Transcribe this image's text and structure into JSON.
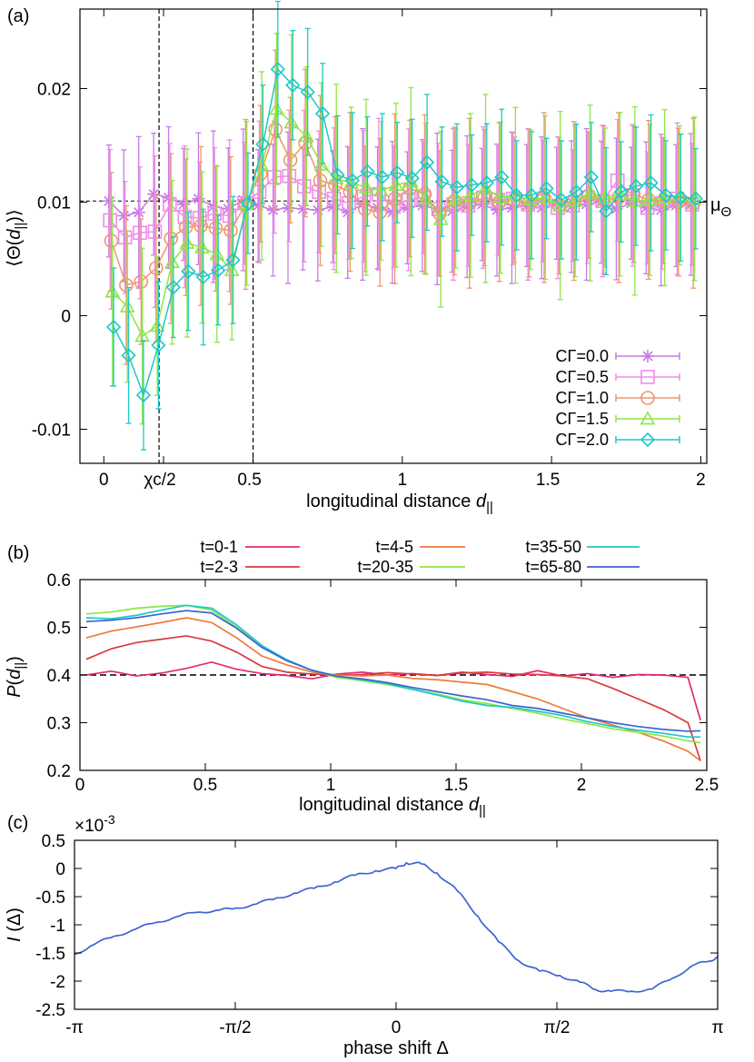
{
  "chart_data": [
    {
      "panel": "(a)",
      "type": "line",
      "xlabel": "longitudinal distance d||",
      "ylabel": "⟨Θ(d||)⟩",
      "xlim": [
        -0.08,
        2.02
      ],
      "ylim": [
        -0.013,
        0.027
      ],
      "xticks": [
        {
          "v": 0,
          "t": "0"
        },
        {
          "v": 0.2,
          "t": "χc/2"
        },
        {
          "v": 0.5,
          "t": "0.5"
        },
        {
          "v": 1,
          "t": "1"
        },
        {
          "v": 1.5,
          "t": "1.5"
        },
        {
          "v": 2,
          "t": "2"
        }
      ],
      "yticks": [
        {
          "v": -0.01,
          "t": "-0.01"
        },
        {
          "v": 0,
          "t": "0"
        },
        {
          "v": 0.01,
          "t": "0.01"
        },
        {
          "v": 0.02,
          "t": "0.02"
        }
      ],
      "vlines": [
        0.185,
        0.5
      ],
      "hline": {
        "value": 0.0101,
        "label": "μΘ"
      },
      "x": [
        0.025,
        0.075,
        0.125,
        0.175,
        0.225,
        0.275,
        0.325,
        0.375,
        0.425,
        0.475,
        0.525,
        0.575,
        0.625,
        0.675,
        0.725,
        0.775,
        0.825,
        0.875,
        0.925,
        0.975,
        1.025,
        1.075,
        1.125,
        1.175,
        1.225,
        1.275,
        1.325,
        1.375,
        1.425,
        1.475,
        1.525,
        1.575,
        1.625,
        1.675,
        1.725,
        1.775,
        1.825,
        1.875,
        1.925,
        1.975
      ],
      "series": [
        {
          "name": "CΓ=0.0",
          "color": "#c77be6",
          "marker": "star",
          "values": [
            0.0101,
            0.0088,
            0.0091,
            0.0107,
            0.0104,
            0.0098,
            0.0103,
            0.0096,
            0.0094,
            0.0102,
            0.0097,
            0.0093,
            0.0095,
            0.0094,
            0.0093,
            0.0096,
            0.0091,
            0.0098,
            0.0095,
            0.0091,
            0.0095,
            0.0097,
            0.0094,
            0.0092,
            0.0096,
            0.0098,
            0.0093,
            0.0095,
            0.0097,
            0.0095,
            0.0099,
            0.0096,
            0.0098,
            0.01,
            0.0094,
            0.0099,
            0.0095,
            0.0093,
            0.0097,
            0.0098
          ],
          "err": 0.0058
        },
        {
          "name": "CΓ=0.5",
          "color": "#f08ce6",
          "marker": "square",
          "values": [
            0.0084,
            0.0069,
            0.0073,
            0.0074,
            0.0098,
            0.0087,
            0.0086,
            0.009,
            0.0088,
            0.0099,
            0.0109,
            0.0122,
            0.0123,
            0.0114,
            0.0109,
            0.0103,
            0.0099,
            0.0105,
            0.0107,
            0.0096,
            0.0102,
            0.0104,
            0.0094,
            0.0098,
            0.0097,
            0.0104,
            0.0102,
            0.0103,
            0.0098,
            0.0101,
            0.0095,
            0.0097,
            0.0104,
            0.0101,
            0.0119,
            0.0106,
            0.0095,
            0.0099,
            0.0103,
            0.0098
          ],
          "err": 0.0058
        },
        {
          "name": "CΓ=1.0",
          "color": "#f0966e",
          "marker": "circle",
          "values": [
            0.0066,
            0.0027,
            0.003,
            0.0042,
            0.0068,
            0.0078,
            0.0079,
            0.0077,
            0.0075,
            0.0098,
            0.0125,
            0.0164,
            0.0137,
            0.0152,
            0.0119,
            0.0115,
            0.0109,
            0.0094,
            0.0091,
            0.0103,
            0.0112,
            0.0107,
            0.009,
            0.0101,
            0.0099,
            0.0104,
            0.01,
            0.0102,
            0.0099,
            0.0104,
            0.0097,
            0.0101,
            0.0106,
            0.0102,
            0.0104,
            0.0107,
            0.0102,
            0.0101,
            0.01,
            0.0099
          ],
          "err": 0.0065
        },
        {
          "name": "CΓ=1.5",
          "color": "#8ee646",
          "marker": "triangle",
          "values": [
            0.0021,
            0.0008,
            -0.0018,
            -0.0009,
            0.0047,
            0.0064,
            0.006,
            0.0054,
            0.004,
            0.0099,
            0.0132,
            0.0182,
            0.017,
            0.0158,
            0.0133,
            0.0121,
            0.0117,
            0.0113,
            0.011,
            0.0115,
            0.0118,
            0.0103,
            0.0085,
            0.0103,
            0.0106,
            0.0112,
            0.0104,
            0.0106,
            0.0102,
            0.0104,
            0.0097,
            0.0101,
            0.0108,
            0.0104,
            0.0107,
            0.0101,
            0.0102,
            0.0104,
            0.0106,
            0.0103
          ],
          "err": 0.0072
        },
        {
          "name": "CΓ=2.0",
          "color": "#1ec8c8",
          "marker": "diamond",
          "values": [
            -0.001,
            -0.0035,
            -0.007,
            -0.0026,
            0.0025,
            0.0039,
            0.0034,
            0.004,
            0.0049,
            0.0099,
            0.0151,
            0.0217,
            0.0203,
            0.0197,
            0.0178,
            0.0124,
            0.0119,
            0.0127,
            0.0122,
            0.0126,
            0.0121,
            0.0135,
            0.0118,
            0.0113,
            0.0115,
            0.0117,
            0.0122,
            0.0106,
            0.0106,
            0.0112,
            0.0102,
            0.0109,
            0.0122,
            0.0092,
            0.0109,
            0.0114,
            0.0117,
            0.0106,
            0.0104,
            0.0103
          ],
          "err": 0.0052
        }
      ]
    },
    {
      "panel": "(b)",
      "type": "line",
      "xlabel": "longitudinal distance d||",
      "ylabel": "P(d||)",
      "xlim": [
        0,
        2.5
      ],
      "ylim": [
        0.2,
        0.6
      ],
      "xticks": [
        {
          "v": 0,
          "t": "0"
        },
        {
          "v": 0.5,
          "t": "0.5"
        },
        {
          "v": 1,
          "t": "1"
        },
        {
          "v": 1.5,
          "t": "1.5"
        },
        {
          "v": 2,
          "t": "2"
        },
        {
          "v": 2.5,
          "t": "2.5"
        }
      ],
      "yticks": [
        {
          "v": 0.2,
          "t": "0.2"
        },
        {
          "v": 0.3,
          "t": "0.3"
        },
        {
          "v": 0.4,
          "t": "0.4"
        },
        {
          "v": 0.5,
          "t": "0.5"
        },
        {
          "v": 0.6,
          "t": "0.6"
        }
      ],
      "hline": {
        "value": 0.4
      },
      "x": [
        0.025,
        0.125,
        0.225,
        0.325,
        0.425,
        0.525,
        0.625,
        0.725,
        0.825,
        0.925,
        1.025,
        1.125,
        1.225,
        1.325,
        1.425,
        1.525,
        1.625,
        1.725,
        1.825,
        1.925,
        2.025,
        2.125,
        2.225,
        2.325,
        2.425,
        2.475
      ],
      "series": [
        {
          "name": "t=0-1",
          "color": "#e6287a",
          "values": [
            0.4,
            0.408,
            0.398,
            0.404,
            0.414,
            0.427,
            0.412,
            0.403,
            0.399,
            0.392,
            0.402,
            0.406,
            0.4,
            0.403,
            0.399,
            0.406,
            0.401,
            0.397,
            0.409,
            0.398,
            0.403,
            0.395,
            0.401,
            0.4,
            0.395,
            0.305
          ]
        },
        {
          "name": "t=2-3",
          "color": "#d83c3c",
          "values": [
            0.433,
            0.455,
            0.468,
            0.475,
            0.482,
            0.471,
            0.448,
            0.418,
            0.406,
            0.402,
            0.4,
            0.401,
            0.405,
            0.402,
            0.399,
            0.404,
            0.406,
            0.402,
            0.401,
            0.398,
            0.392,
            0.372,
            0.35,
            0.328,
            0.3,
            0.22
          ]
        },
        {
          "name": "t=4-5",
          "color": "#f07a3c",
          "values": [
            0.478,
            0.492,
            0.501,
            0.51,
            0.52,
            0.51,
            0.478,
            0.44,
            0.421,
            0.406,
            0.4,
            0.398,
            0.4,
            0.393,
            0.39,
            0.385,
            0.38,
            0.365,
            0.35,
            0.33,
            0.31,
            0.295,
            0.28,
            0.262,
            0.24,
            0.22
          ]
        },
        {
          "name": "t=20-35",
          "color": "#8ee646",
          "values": [
            0.528,
            0.532,
            0.54,
            0.544,
            0.546,
            0.536,
            0.5,
            0.46,
            0.43,
            0.41,
            0.395,
            0.388,
            0.38,
            0.37,
            0.36,
            0.348,
            0.34,
            0.33,
            0.32,
            0.308,
            0.298,
            0.287,
            0.28,
            0.272,
            0.262,
            0.258
          ]
        },
        {
          "name": "t=35-50",
          "color": "#1ec8c8",
          "values": [
            0.52,
            0.518,
            0.525,
            0.536,
            0.546,
            0.54,
            0.505,
            0.462,
            0.432,
            0.41,
            0.398,
            0.39,
            0.382,
            0.37,
            0.358,
            0.345,
            0.336,
            0.332,
            0.324,
            0.315,
            0.302,
            0.292,
            0.284,
            0.278,
            0.27,
            0.27
          ]
        },
        {
          "name": "t=65-80",
          "color": "#3c64d2",
          "values": [
            0.512,
            0.515,
            0.52,
            0.528,
            0.535,
            0.53,
            0.498,
            0.458,
            0.43,
            0.41,
            0.397,
            0.392,
            0.384,
            0.374,
            0.365,
            0.356,
            0.348,
            0.336,
            0.33,
            0.32,
            0.31,
            0.3,
            0.292,
            0.286,
            0.282,
            0.283
          ]
        }
      ]
    },
    {
      "panel": "(c)",
      "type": "line",
      "xlabel": "phase shift Δ",
      "ylabel": "I (Δ)",
      "scale_label": "×10",
      "scale_exp": "-3",
      "xlim": [
        -3.14159,
        3.14159
      ],
      "ylim": [
        -2.5,
        0.5
      ],
      "xticks": [
        {
          "v": -3.14159,
          "t": "-π"
        },
        {
          "v": -1.5708,
          "t": "-π/2"
        },
        {
          "v": 0,
          "t": "0"
        },
        {
          "v": 1.5708,
          "t": "π/2"
        },
        {
          "v": 3.14159,
          "t": "π"
        }
      ],
      "yticks": [
        {
          "v": -2.5,
          "t": "-2.5"
        },
        {
          "v": -2,
          "t": "-2"
        },
        {
          "v": -1.5,
          "t": "-1.5"
        },
        {
          "v": -1,
          "t": "-1"
        },
        {
          "v": -0.5,
          "t": "-0.5"
        },
        {
          "v": 0,
          "t": "0"
        },
        {
          "v": 0.5,
          "t": "0.5"
        }
      ],
      "series": [
        {
          "name": "I(Δ)",
          "color": "#3c64d2",
          "x": [
            -3.14,
            -2.95,
            -2.75,
            -2.55,
            -2.35,
            -2.15,
            -1.95,
            -1.75,
            -1.6,
            -1.4,
            -1.2,
            -1.0,
            -0.8,
            -0.6,
            -0.4,
            -0.2,
            0.0,
            0.1,
            0.25,
            0.4,
            0.6,
            0.8,
            1.0,
            1.2,
            1.4,
            1.6,
            1.8,
            1.95,
            2.1,
            2.3,
            2.5,
            2.7,
            2.9,
            3.05,
            3.14
          ],
          "values": [
            -1.52,
            -1.35,
            -1.2,
            -1.08,
            -0.96,
            -0.86,
            -0.78,
            -0.74,
            -0.72,
            -0.64,
            -0.55,
            -0.44,
            -0.35,
            -0.24,
            -0.12,
            -0.04,
            0.0,
            0.1,
            0.08,
            -0.08,
            -0.4,
            -0.85,
            -1.3,
            -1.64,
            -1.82,
            -1.9,
            -2.02,
            -2.15,
            -2.18,
            -2.18,
            -2.14,
            -1.95,
            -1.72,
            -1.65,
            -1.57
          ]
        }
      ]
    }
  ]
}
